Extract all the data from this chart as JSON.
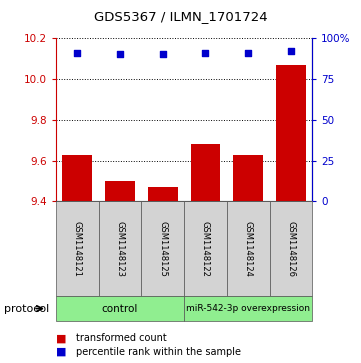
{
  "title": "GDS5367 / ILMN_1701724",
  "samples": [
    "GSM1148121",
    "GSM1148123",
    "GSM1148125",
    "GSM1148122",
    "GSM1148124",
    "GSM1148126"
  ],
  "transformed_counts": [
    9.63,
    9.5,
    9.47,
    9.68,
    9.63,
    10.07
  ],
  "percentile_ranks": [
    91,
    90,
    90,
    91,
    91,
    92
  ],
  "ylim_left": [
    9.4,
    10.2
  ],
  "ylim_right": [
    0,
    100
  ],
  "yticks_left": [
    9.4,
    9.6,
    9.8,
    10.0,
    10.2
  ],
  "yticks_right": [
    0,
    25,
    50,
    75,
    100
  ],
  "ytick_labels_right": [
    "0",
    "25",
    "50",
    "75",
    "100%"
  ],
  "bar_color": "#cc0000",
  "dot_color": "#0000cc",
  "groups": [
    {
      "label": "control",
      "indices": [
        0,
        1,
        2
      ]
    },
    {
      "label": "miR-542-3p overexpression",
      "indices": [
        3,
        4,
        5
      ]
    }
  ],
  "group_colors": [
    "#90ee90",
    "#90ee90"
  ],
  "sample_box_color": "#d3d3d3",
  "protocol_label": "protocol",
  "legend_bar_label": "transformed count",
  "legend_dot_label": "percentile rank within the sample",
  "background_color": "#ffffff"
}
